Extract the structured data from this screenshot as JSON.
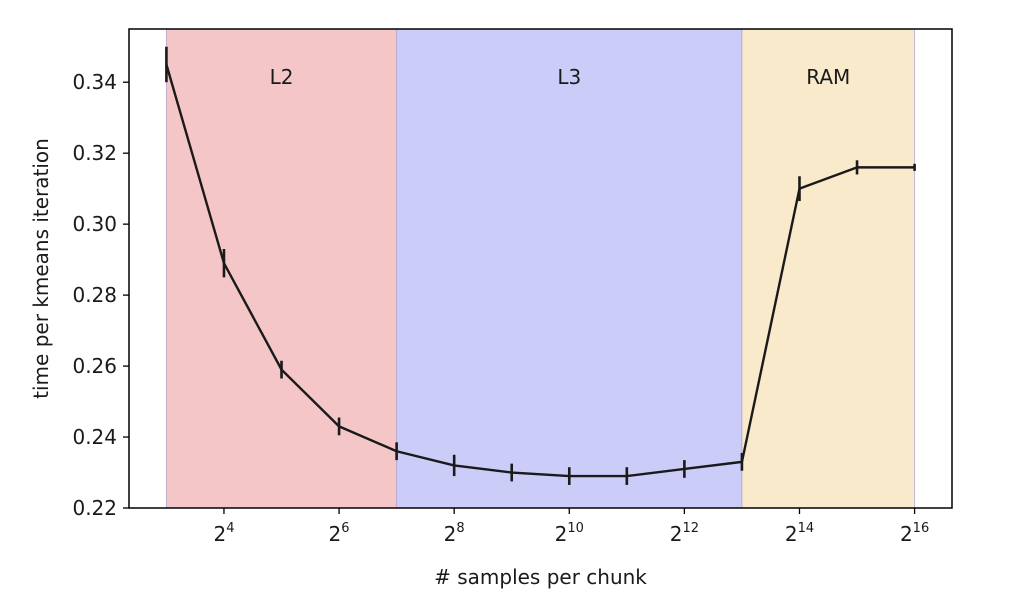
{
  "chart_data": {
    "type": "line",
    "title": "",
    "xlabel": "# samples per chunk",
    "ylabel": "time per kmeans iteration",
    "x_scale": "log2",
    "xlim": [
      3,
      16
    ],
    "ylim": [
      0.22,
      0.355
    ],
    "x_ticks": [
      {
        "value": 4,
        "base": "2",
        "exp": "4"
      },
      {
        "value": 6,
        "base": "2",
        "exp": "6"
      },
      {
        "value": 8,
        "base": "2",
        "exp": "8"
      },
      {
        "value": 10,
        "base": "2",
        "exp": "10"
      },
      {
        "value": 12,
        "base": "2",
        "exp": "12"
      },
      {
        "value": 14,
        "base": "2",
        "exp": "14"
      },
      {
        "value": 16,
        "base": "2",
        "exp": "16"
      }
    ],
    "y_ticks": [
      {
        "value": 0.22,
        "label": "0.22"
      },
      {
        "value": 0.24,
        "label": "0.24"
      },
      {
        "value": 0.26,
        "label": "0.26"
      },
      {
        "value": 0.28,
        "label": "0.28"
      },
      {
        "value": 0.3,
        "label": "0.30"
      },
      {
        "value": 0.32,
        "label": "0.32"
      },
      {
        "value": 0.34,
        "label": "0.34"
      }
    ],
    "regions": [
      {
        "label": "L2",
        "x_start": 3,
        "x_end": 7,
        "color": "#f5c6c8"
      },
      {
        "label": "L3",
        "x_start": 7,
        "x_end": 13,
        "color": "#ccccf8"
      },
      {
        "label": "RAM",
        "x_start": 13,
        "x_end": 16,
        "color": "#faeacc"
      }
    ],
    "series": [
      {
        "color": "#1a1a1a",
        "x": [
          3,
          4,
          5,
          6,
          7,
          8,
          9,
          10,
          11,
          12,
          13,
          14,
          15,
          16
        ],
        "y": [
          0.345,
          0.289,
          0.259,
          0.243,
          0.236,
          0.232,
          0.23,
          0.229,
          0.229,
          0.231,
          0.233,
          0.31,
          0.316,
          0.316
        ],
        "err": [
          0.005,
          0.004,
          0.0025,
          0.0025,
          0.0025,
          0.003,
          0.0025,
          0.0025,
          0.0025,
          0.0025,
          0.0025,
          0.0035,
          0.002,
          0.001
        ]
      }
    ],
    "grid": false,
    "legend": "none"
  }
}
